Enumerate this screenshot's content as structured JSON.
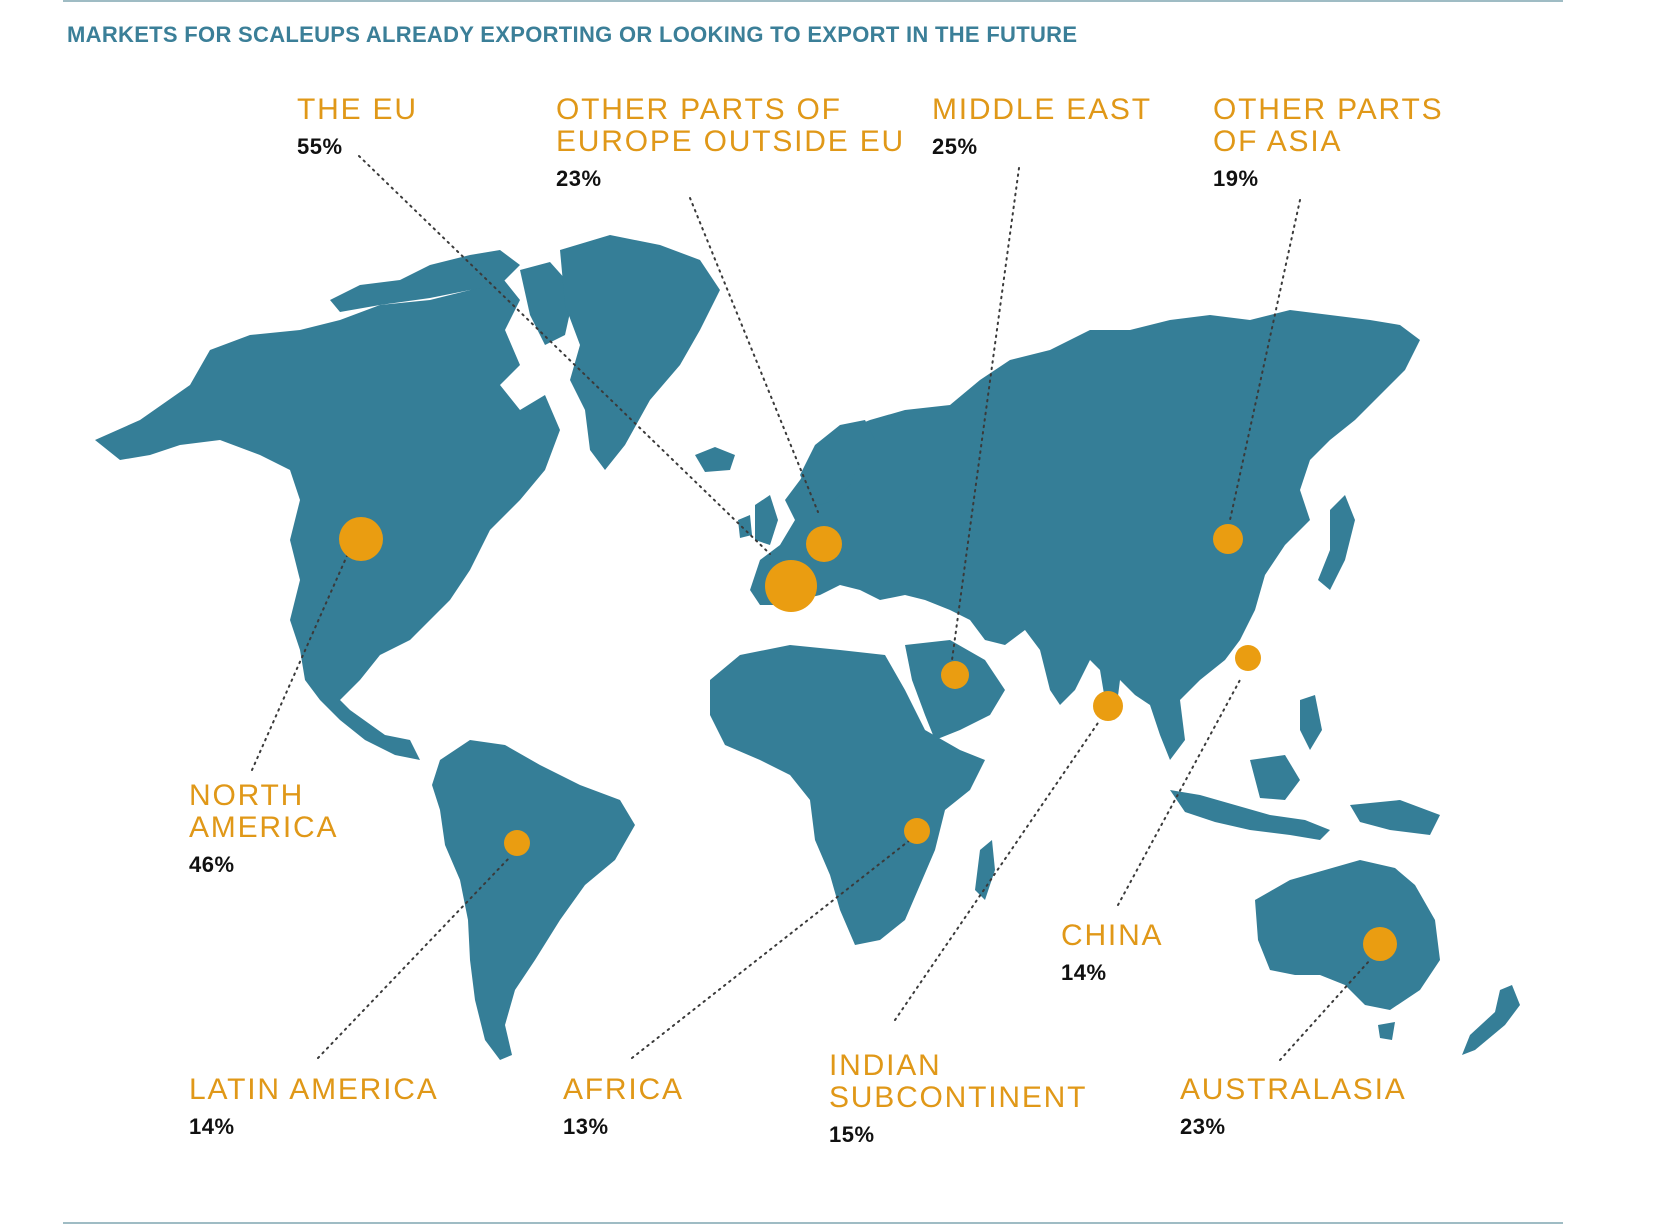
{
  "title": "MARKETS FOR SCALEUPS ALREADY EXPORTING OR LOOKING TO EXPORT IN THE FUTURE",
  "colors": {
    "land": "#357e97",
    "marker": "#ea9d11",
    "label": "#e09818",
    "value": "#111111",
    "title": "#3b7f98"
  },
  "markets": [
    {
      "id": "eu",
      "name": "THE EU",
      "value": "55%"
    },
    {
      "id": "other-europe",
      "name": "OTHER PARTS OF\nEUROPE OUTSIDE EU",
      "value": "23%"
    },
    {
      "id": "middle-east",
      "name": "MIDDLE EAST",
      "value": "25%"
    },
    {
      "id": "other-asia",
      "name": "OTHER PARTS\nOF ASIA",
      "value": "19%"
    },
    {
      "id": "north-america",
      "name": "NORTH\nAMERICA",
      "value": "46%"
    },
    {
      "id": "latin-america",
      "name": "LATIN AMERICA",
      "value": "14%"
    },
    {
      "id": "africa",
      "name": "AFRICA",
      "value": "13%"
    },
    {
      "id": "indian-subcontinent",
      "name": "INDIAN\nSUBCONTINENT",
      "value": "15%"
    },
    {
      "id": "china",
      "name": "CHINA",
      "value": "14%"
    },
    {
      "id": "australasia",
      "name": "AUSTRALASIA",
      "value": "23%"
    }
  ]
}
